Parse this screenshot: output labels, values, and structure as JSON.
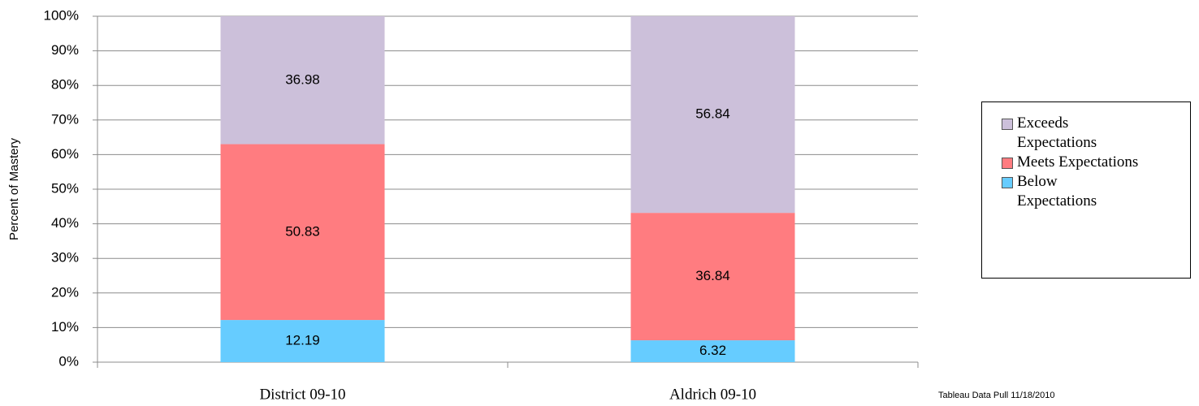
{
  "chart_data": {
    "type": "stacked_bar",
    "ylabel": "Percent of Mastery",
    "categories": [
      "District 09-10",
      "Aldrich 09-10"
    ],
    "series": [
      {
        "name": "Below Expectations",
        "color": "#66ccff",
        "values": [
          12.19,
          6.32
        ]
      },
      {
        "name": "Meets Expectations",
        "color": "#ff7c80",
        "values": [
          50.83,
          36.84
        ]
      },
      {
        "name": "Exceeds Expectations",
        "color": "#ccc0da",
        "values": [
          36.98,
          56.84
        ]
      }
    ],
    "ylim": [
      0,
      100
    ],
    "yticks": [
      {
        "value": 0,
        "label": "0%"
      },
      {
        "value": 10,
        "label": "10%"
      },
      {
        "value": 20,
        "label": "20%"
      },
      {
        "value": 30,
        "label": "30%"
      },
      {
        "value": 40,
        "label": "40%"
      },
      {
        "value": 50,
        "label": "50%"
      },
      {
        "value": 60,
        "label": "60%"
      },
      {
        "value": 70,
        "label": "70%"
      },
      {
        "value": 80,
        "label": "80%"
      },
      {
        "value": 90,
        "label": "90%"
      },
      {
        "value": 100,
        "label": "100%"
      }
    ],
    "grid": true,
    "legend": "right",
    "note": "Tableau Data Pull 11/18/2010"
  }
}
